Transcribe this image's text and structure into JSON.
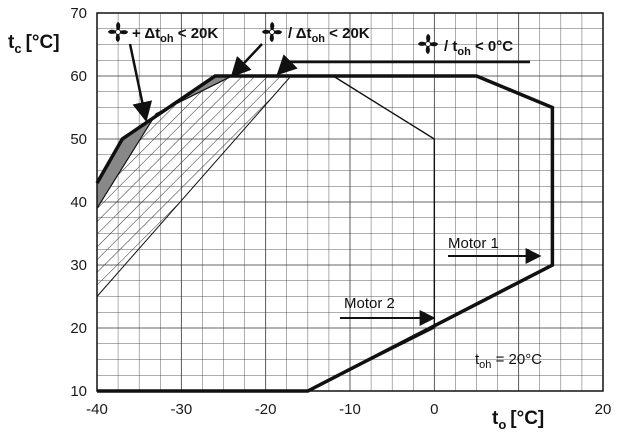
{
  "chart_data": {
    "type": "line",
    "x_axis": {
      "label": "t",
      "label_sub": "o",
      "unit": "[°C]",
      "min": -40,
      "max": 20,
      "ticks": [
        "-40",
        "-30",
        "-20",
        "-10",
        "0",
        "20"
      ]
    },
    "y_axis": {
      "label": "t",
      "label_sub": "c",
      "unit": "[°C]",
      "min": 10,
      "max": 70,
      "ticks": [
        "10",
        "20",
        "30",
        "40",
        "50",
        "60",
        "70"
      ]
    },
    "grid": true,
    "envelopes": [
      {
        "name": "Motor 1",
        "points": [
          [
            -40,
            10
          ],
          [
            -15,
            10
          ],
          [
            14,
            30
          ],
          [
            14,
            55
          ],
          [
            5,
            60
          ],
          [
            -26,
            60
          ],
          [
            -37,
            50
          ],
          [
            -40,
            43
          ]
        ]
      },
      {
        "name": "Motor 2",
        "points": [
          [
            -40,
            10
          ],
          [
            -15,
            10
          ],
          [
            0,
            20
          ],
          [
            0,
            50
          ],
          [
            -12,
            60
          ],
          [
            -26,
            60
          ],
          [
            -37,
            50
          ],
          [
            -40,
            43
          ]
        ]
      }
    ],
    "regions": [
      {
        "id": "fan-dtoh-lt-20k",
        "fill": "#888888",
        "points": [
          [
            -40,
            43
          ],
          [
            -37,
            50
          ],
          [
            -26,
            60
          ],
          [
            -24,
            60
          ],
          [
            -33,
            54
          ],
          [
            -40,
            39
          ]
        ]
      },
      {
        "id": "fan-slash-dtoh-lt-20k",
        "fill": "hatch",
        "points": [
          [
            -40,
            39
          ],
          [
            -33,
            54
          ],
          [
            -24,
            60
          ],
          [
            -17,
            60
          ],
          [
            -40,
            25
          ]
        ]
      }
    ],
    "annotations": {
      "motor1": "Motor 1",
      "motor2": "Motor 2",
      "toh_main": "t",
      "toh_sub": "oh",
      "toh_value": " = 20°C",
      "legend1_prefix": "+ Δt",
      "legend1_sub": "oh",
      "legend1_suffix": " < 20K",
      "legend2_prefix": "/ Δt",
      "legend2_sub": "oh",
      "legend2_suffix": " < 20K",
      "legend3_prefix": "/ t",
      "legend3_sub": "oh",
      "legend3_suffix": " < 0°C"
    },
    "colors": {
      "line": "#111111",
      "grid": "#333333",
      "shade": "#888888"
    }
  }
}
